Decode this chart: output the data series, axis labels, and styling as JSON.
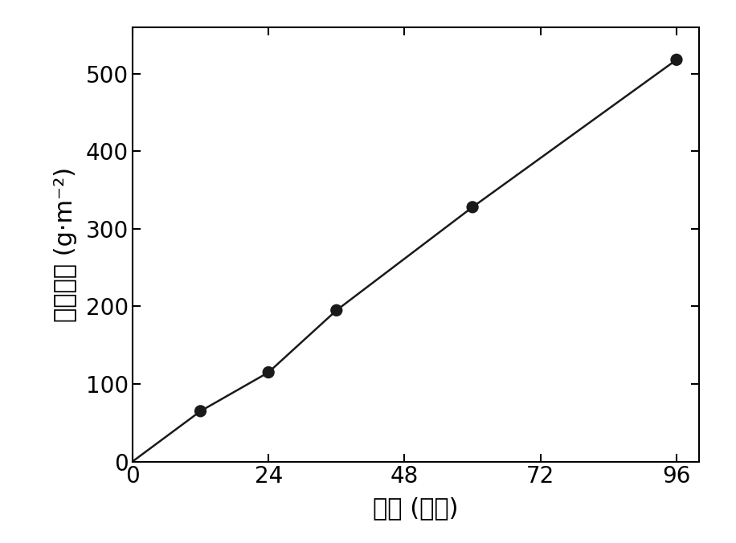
{
  "x": [
    0,
    12,
    24,
    36,
    60,
    96
  ],
  "y": [
    0,
    65,
    115,
    195,
    328,
    518
  ],
  "data_points_x": [
    12,
    24,
    36,
    60,
    96
  ],
  "data_points_y": [
    65,
    115,
    195,
    328,
    518
  ],
  "xlabel": "时间 (小时)",
  "ylabel": "腥蚀失重 (g·m⁻²)",
  "xlim": [
    0,
    100
  ],
  "ylim": [
    0,
    560
  ],
  "xticks": [
    0,
    24,
    48,
    72,
    96
  ],
  "yticks": [
    0,
    100,
    200,
    300,
    400,
    500
  ],
  "line_color": "#1a1a1a",
  "marker_color": "#1a1a1a",
  "marker_size": 11,
  "line_width": 1.8,
  "background_color": "#ffffff",
  "tick_fontsize": 20,
  "label_fontsize": 22
}
